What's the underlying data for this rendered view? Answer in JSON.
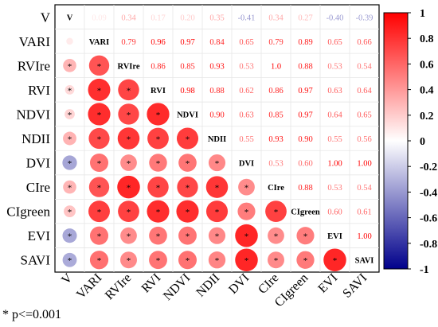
{
  "chart_data": {
    "type": "heatmap",
    "variables": [
      "V",
      "VARI",
      "RVIre",
      "RVI",
      "NDVI",
      "NDII",
      "DVI",
      "CIre",
      "CIgreen",
      "EVI",
      "SAVI"
    ],
    "matrix": [
      [
        1.0,
        0.09,
        0.34,
        0.17,
        0.2,
        0.35,
        -0.41,
        0.34,
        0.27,
        -0.4,
        -0.39
      ],
      [
        0.09,
        1.0,
        0.79,
        0.96,
        0.97,
        0.84,
        0.65,
        0.79,
        0.89,
        0.65,
        0.66
      ],
      [
        0.34,
        0.79,
        1.0,
        0.86,
        0.85,
        0.93,
        0.53,
        1.0,
        0.88,
        0.53,
        0.54
      ],
      [
        0.17,
        0.96,
        0.86,
        1.0,
        0.98,
        0.88,
        0.62,
        0.86,
        0.97,
        0.63,
        0.64
      ],
      [
        0.2,
        0.97,
        0.85,
        0.98,
        1.0,
        0.9,
        0.63,
        0.85,
        0.97,
        0.64,
        0.65
      ],
      [
        0.35,
        0.84,
        0.93,
        0.88,
        0.9,
        1.0,
        0.55,
        0.93,
        0.9,
        0.55,
        0.56
      ],
      [
        -0.41,
        0.65,
        0.53,
        0.62,
        0.63,
        0.55,
        1.0,
        0.53,
        0.6,
        1.0,
        1.0
      ],
      [
        0.34,
        0.79,
        1.0,
        0.86,
        0.85,
        0.93,
        0.53,
        1.0,
        0.88,
        0.53,
        0.54
      ],
      [
        0.27,
        0.89,
        0.88,
        0.97,
        0.97,
        0.9,
        0.6,
        0.88,
        1.0,
        0.6,
        0.61
      ],
      [
        -0.4,
        0.65,
        0.53,
        0.63,
        0.64,
        0.55,
        1.0,
        0.53,
        0.6,
        1.0,
        1.0
      ],
      [
        -0.39,
        0.66,
        0.54,
        0.64,
        0.65,
        0.56,
        1.0,
        0.54,
        0.61,
        1.0,
        1.0
      ]
    ],
    "upper_value_labels": [
      [
        null,
        "0.09",
        "0.34",
        "0.17",
        "0.20",
        "0.35",
        "-0.41",
        "0.34",
        "0.27",
        "-0.40",
        "-0.39"
      ],
      [
        null,
        null,
        "0.79",
        "0.96",
        "0.97",
        "0.84",
        "0.65",
        "0.79",
        "0.89",
        "0.65",
        "0.66"
      ],
      [
        null,
        null,
        null,
        "0.86",
        "0.85",
        "0.93",
        "0.53",
        "1.0",
        "0.88",
        "0.53",
        "0.54"
      ],
      [
        null,
        null,
        null,
        null,
        "0.98",
        "0.88",
        "0.62",
        "0.86",
        "0.97",
        "0.63",
        "0.64"
      ],
      [
        null,
        null,
        null,
        null,
        null,
        "0.90",
        "0.63",
        "0.85",
        "0.97",
        "0.64",
        "0.65"
      ],
      [
        null,
        null,
        null,
        null,
        null,
        null,
        "0.55",
        "0.93",
        "0.90",
        "0.55",
        "0.56"
      ],
      [
        null,
        null,
        null,
        null,
        null,
        null,
        null,
        "0.53",
        "0.60",
        "1.00",
        "1.00"
      ],
      [
        null,
        null,
        null,
        null,
        null,
        null,
        null,
        null,
        "0.88",
        "0.53",
        "0.54"
      ],
      [
        null,
        null,
        null,
        null,
        null,
        null,
        null,
        null,
        null,
        "0.60",
        "0.61"
      ],
      [
        null,
        null,
        null,
        null,
        null,
        null,
        null,
        null,
        null,
        null,
        "1.00"
      ],
      [
        null,
        null,
        null,
        null,
        null,
        null,
        null,
        null,
        null,
        null,
        null
      ]
    ],
    "lower_significance": [
      [],
      [
        false
      ],
      [
        true,
        true
      ],
      [
        true,
        true,
        true
      ],
      [
        true,
        true,
        true,
        true
      ],
      [
        true,
        true,
        true,
        true,
        true
      ],
      [
        true,
        true,
        true,
        true,
        true,
        true
      ],
      [
        true,
        true,
        true,
        true,
        true,
        true,
        true
      ],
      [
        true,
        true,
        true,
        true,
        true,
        true,
        true,
        true
      ],
      [
        true,
        true,
        true,
        true,
        true,
        true,
        true,
        true,
        true
      ],
      [
        true,
        true,
        true,
        true,
        true,
        true,
        true,
        true,
        true,
        true
      ]
    ],
    "color_scale": {
      "range": [
        -1,
        1
      ],
      "ticks": [
        "1",
        "0.8",
        "0.6",
        "0.4",
        "0.2",
        "0",
        "-0.2",
        "-0.4",
        "-0.6",
        "-0.8",
        "-1"
      ],
      "colors": {
        "negative": "#00008b",
        "zero": "#ffffff",
        "positive": "#ff0000"
      }
    },
    "footnote": "* p<=0.001",
    "upper_triangle": "numbers",
    "lower_triangle": "circles",
    "diagonal": "variable names",
    "grid": true
  }
}
